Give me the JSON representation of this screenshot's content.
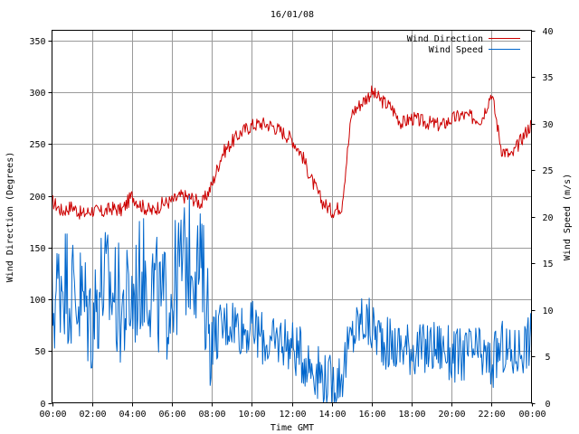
{
  "chart_data": {
    "type": "line",
    "title": "16/01/08",
    "xlabel": "Time GMT",
    "ylabel_left": "Wind Direction (Degrees)",
    "ylabel_right": "Wind Speed (m/s)",
    "x_range": [
      "00:00",
      "24:00"
    ],
    "x_ticks": [
      "00:00",
      "02:00",
      "04:00",
      "06:00",
      "08:00",
      "10:00",
      "12:00",
      "14:00",
      "16:00",
      "18:00",
      "20:00",
      "22:00",
      "00:00"
    ],
    "ylim_left": [
      0,
      360
    ],
    "yticks_left": [
      0,
      50,
      100,
      150,
      200,
      250,
      300,
      350
    ],
    "ylim_right": [
      0,
      40
    ],
    "yticks_right": [
      0,
      5,
      10,
      15,
      20,
      25,
      30,
      35,
      40
    ],
    "grid": true,
    "legend_position": "top-right",
    "series": [
      {
        "name": "Wind Direction",
        "axis": "left",
        "color": "#cc0000",
        "x_hours": [
          0,
          0.5,
          1,
          1.5,
          2,
          2.5,
          3,
          3.5,
          4,
          4.5,
          5,
          5.5,
          6,
          6.5,
          7,
          7.5,
          8,
          8.5,
          9,
          9.5,
          10,
          10.5,
          11,
          11.5,
          12,
          12.5,
          13,
          13.5,
          14,
          14.5,
          15,
          15.5,
          16,
          16.5,
          17,
          17.5,
          18,
          18.5,
          19,
          19.5,
          20,
          20.5,
          21,
          21.5,
          22,
          22.5,
          23,
          23.5,
          24
        ],
        "values": [
          195,
          185,
          190,
          182,
          186,
          184,
          188,
          186,
          200,
          190,
          185,
          192,
          195,
          200,
          198,
          192,
          210,
          240,
          252,
          262,
          268,
          270,
          268,
          262,
          255,
          240,
          215,
          195,
          185,
          190,
          280,
          290,
          300,
          292,
          285,
          270,
          275,
          272,
          270,
          268,
          274,
          278,
          276,
          274,
          300,
          245,
          238,
          255,
          270
        ]
      },
      {
        "name": "Wind Speed",
        "axis": "right",
        "color": "#0066cc",
        "x_hours": [
          0,
          0.5,
          1,
          1.5,
          2,
          2.5,
          3,
          3.5,
          4,
          4.5,
          5,
          5.5,
          6,
          6.5,
          7,
          7.5,
          8,
          8.5,
          9,
          9.5,
          10,
          10.5,
          11,
          11.5,
          12,
          12.5,
          13,
          13.5,
          14,
          14.5,
          15,
          15.5,
          16,
          16.5,
          17,
          17.5,
          18,
          18.5,
          19,
          19.5,
          20,
          20.5,
          21,
          21.5,
          22,
          22.5,
          23,
          23.5,
          24
        ],
        "values": [
          10,
          14,
          12,
          11,
          9,
          13,
          12,
          10,
          11,
          14,
          13,
          10,
          12,
          15,
          16,
          14,
          7,
          8,
          9,
          8,
          8,
          7,
          6,
          7,
          6,
          5,
          4,
          3,
          2,
          3,
          7,
          9,
          8,
          7,
          6,
          6,
          6,
          5.5,
          6,
          6,
          5,
          5,
          5.5,
          5,
          4,
          6,
          5,
          6,
          7
        ]
      }
    ]
  }
}
